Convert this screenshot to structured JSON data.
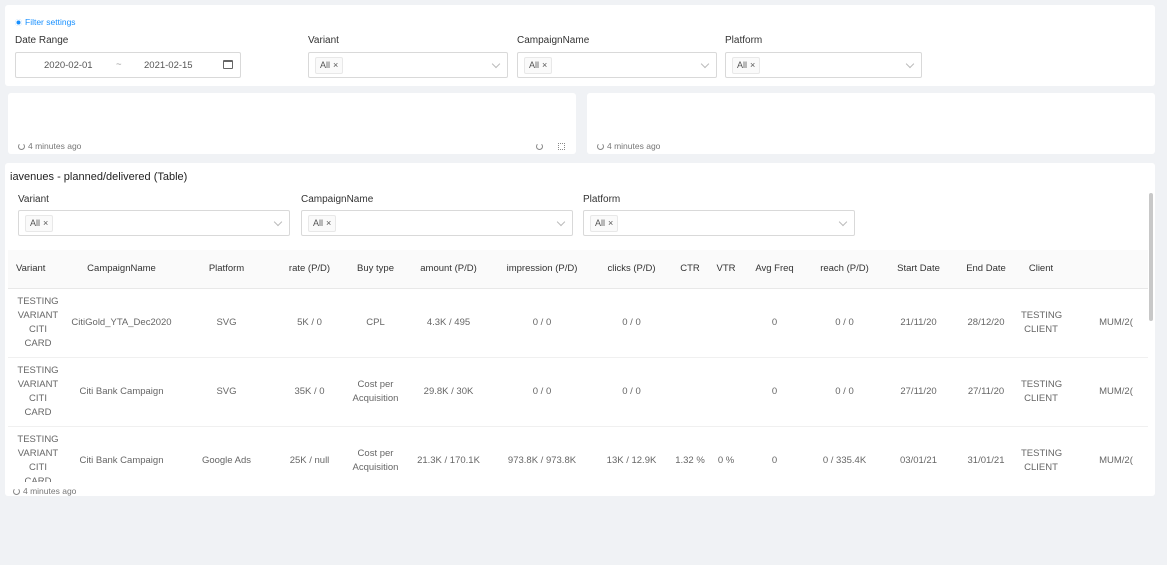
{
  "filters": {
    "settings_link": "Filter settings",
    "date_range_label": "Date Range",
    "date_start": "2020-02-01",
    "date_sep": "~",
    "date_end": "2021-02-15",
    "variant_label": "Variant",
    "campaign_label": "CampaignName",
    "platform_label": "Platform",
    "all_tag": "All"
  },
  "panels": {
    "left_updated": "4 minutes ago",
    "right_updated": "4 minutes ago"
  },
  "table_card": {
    "title": "iavenues - planned/delivered (Table)",
    "variant_label": "Variant",
    "campaign_label": "CampaignName",
    "platform_label": "Platform",
    "all_tag": "All",
    "updated": "4 minutes ago",
    "columns": [
      "Variant",
      "CampaignName",
      "Platform",
      "rate (P/D)",
      "Buy type",
      "amount (P/D)",
      "impression (P/D)",
      "clicks (P/D)",
      "CTR",
      "VTR",
      "Avg Freq",
      "reach (P/D)",
      "Start Date",
      "End Date",
      "Client",
      ""
    ],
    "rows": [
      [
        "TESTING VARIANT CITI CARD",
        "CitiGold_YTA_Dec2020",
        "SVG",
        "5K / 0",
        "CPL",
        "4.3K / 495",
        "0 / 0",
        "0 / 0",
        "",
        "",
        "0",
        "0 / 0",
        "21/11/20",
        "28/12/20",
        "TESTING CLIENT",
        "MUM/2("
      ],
      [
        "TESTING VARIANT CITI CARD",
        "Citi Bank Campaign",
        "SVG",
        "35K / 0",
        "Cost per Acquisition",
        "29.8K / 30K",
        "0 / 0",
        "0 / 0",
        "",
        "",
        "0",
        "0 / 0",
        "27/11/20",
        "27/11/20",
        "TESTING CLIENT",
        "MUM/2("
      ],
      [
        "TESTING VARIANT CITI CARD",
        "Citi Bank Campaign",
        "Google Ads",
        "25K / null",
        "Cost per Acquisition",
        "21.3K / 170.1K",
        "973.8K / 973.8K",
        "13K / 12.9K",
        "1.32 %",
        "0 %",
        "0",
        "0 / 335.4K",
        "03/01/21",
        "31/01/21",
        "TESTING CLIENT",
        "MUM/2("
      ]
    ]
  },
  "icons": {
    "gear": "gear-icon",
    "calendar": "calendar-icon",
    "refresh": "refresh-icon",
    "expand": "expand-icon",
    "close": "close-icon",
    "chevron": "chevron-down-icon"
  }
}
